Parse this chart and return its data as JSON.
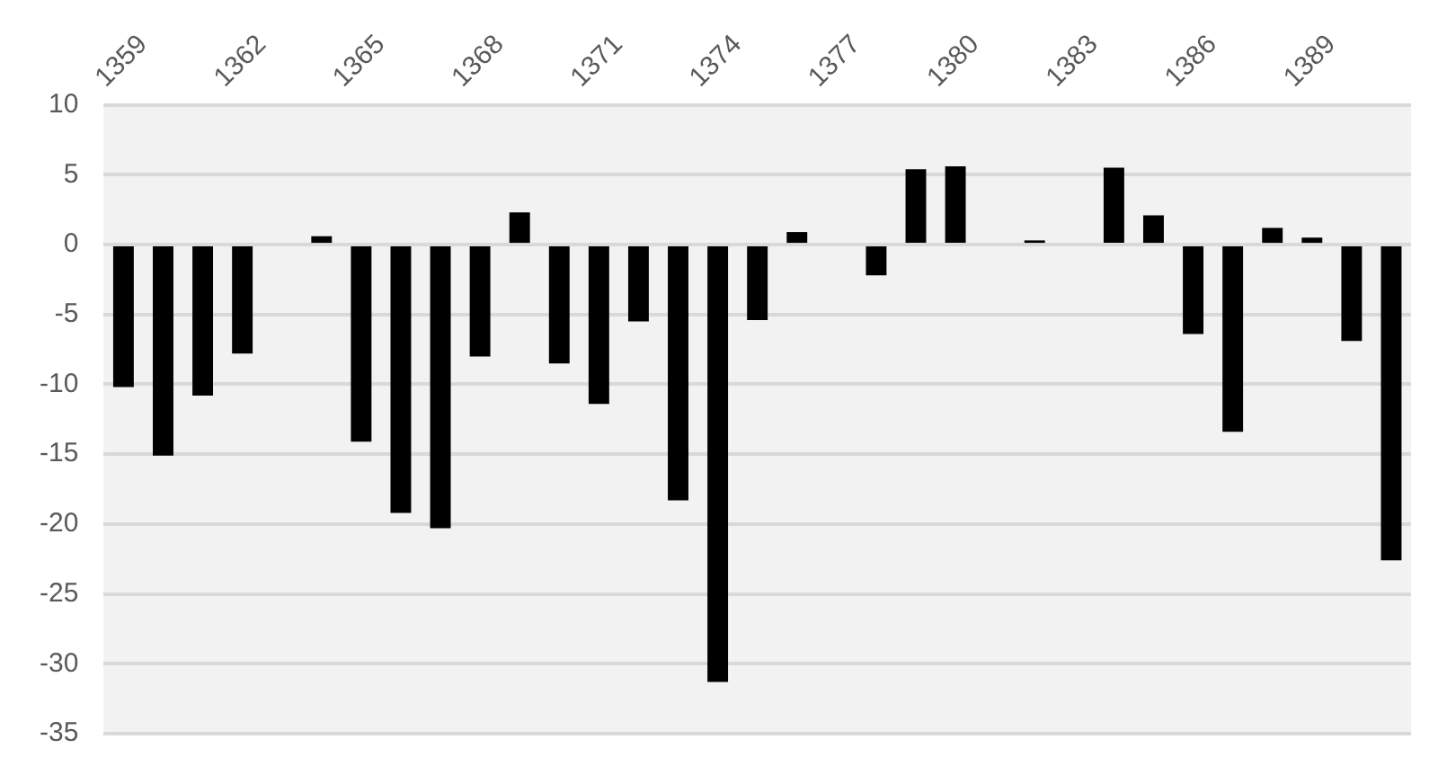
{
  "chart_data": {
    "type": "bar",
    "categories": [
      "1359",
      null,
      null,
      "1362",
      null,
      null,
      "1365",
      null,
      null,
      "1368",
      null,
      null,
      "1371",
      null,
      null,
      "1374",
      null,
      null,
      "1377",
      null,
      null,
      "1380",
      null,
      null,
      "1383",
      null,
      null,
      "1386",
      null,
      null,
      "1389",
      null,
      null
    ],
    "values": [
      -10.2,
      -15.1,
      -10.8,
      -7.8,
      0,
      0.6,
      -14.1,
      -19.2,
      -20.3,
      -8.0,
      2.3,
      -8.5,
      -11.4,
      -5.5,
      -18.3,
      -31.3,
      -5.4,
      0.9,
      null,
      -2.2,
      5.4,
      5.6,
      0,
      0.3,
      null,
      5.5,
      2.1,
      -6.4,
      -13.4,
      1.2,
      0.5,
      -6.9,
      -22.6
    ],
    "color": "#000000",
    "ylim": [
      -35,
      10
    ],
    "yticks": [
      -35,
      -30,
      -25,
      -20,
      -15,
      -10,
      -5,
      0,
      5,
      10
    ],
    "grid": "y"
  }
}
